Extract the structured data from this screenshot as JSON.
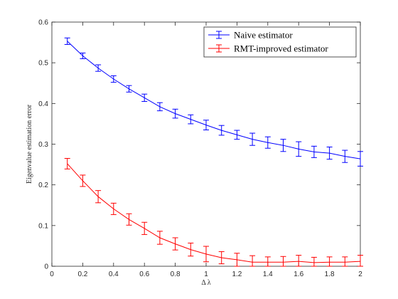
{
  "chart_data": {
    "type": "line",
    "title": "",
    "xlabel": "Δ λ",
    "ylabel": "Eigenvalue estimation error",
    "xlim": [
      0,
      2
    ],
    "ylim": [
      0,
      0.6
    ],
    "xticks": [
      "0",
      "0.2",
      "0.4",
      "0.6",
      "0.8",
      "1",
      "1.2",
      "1.4",
      "1.6",
      "1.8",
      "2"
    ],
    "yticks": [
      "0",
      "0.1",
      "0.2",
      "0.3",
      "0.4",
      "0.5",
      "0.6"
    ],
    "grid": false,
    "legend_position": "top-right",
    "x": [
      0.1,
      0.2,
      0.3,
      0.4,
      0.5,
      0.6,
      0.7,
      0.8,
      0.9,
      1.0,
      1.1,
      1.2,
      1.3,
      1.4,
      1.5,
      1.6,
      1.7,
      1.8,
      1.9,
      2.0
    ],
    "series": [
      {
        "name": "Naive estimator",
        "color": "#0000ff",
        "values": [
          0.553,
          0.517,
          0.487,
          0.46,
          0.436,
          0.414,
          0.392,
          0.375,
          0.361,
          0.347,
          0.334,
          0.323,
          0.312,
          0.304,
          0.297,
          0.288,
          0.281,
          0.278,
          0.27,
          0.264
        ],
        "errors": [
          0.008,
          0.007,
          0.008,
          0.008,
          0.008,
          0.009,
          0.01,
          0.011,
          0.011,
          0.012,
          0.012,
          0.011,
          0.015,
          0.014,
          0.015,
          0.018,
          0.014,
          0.015,
          0.015,
          0.018
        ]
      },
      {
        "name": "RMT-improved estimator",
        "color": "#ff0000",
        "values": [
          0.252,
          0.21,
          0.171,
          0.141,
          0.115,
          0.093,
          0.07,
          0.055,
          0.041,
          0.03,
          0.021,
          0.016,
          0.01,
          0.01,
          0.01,
          0.012,
          0.009,
          0.01,
          0.01,
          0.012
        ],
        "errors": [
          0.013,
          0.014,
          0.015,
          0.014,
          0.014,
          0.015,
          0.016,
          0.015,
          0.016,
          0.019,
          0.015,
          0.016,
          0.016,
          0.013,
          0.014,
          0.015,
          0.013,
          0.013,
          0.013,
          0.015
        ]
      }
    ]
  }
}
